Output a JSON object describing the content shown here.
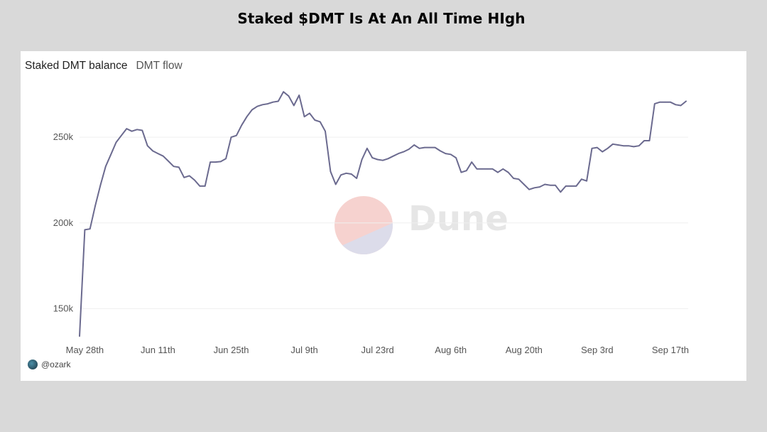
{
  "title": "Staked $DMT Is At An All Time HIgh",
  "tabs": [
    {
      "label": "Staked DMT balance",
      "active": true
    },
    {
      "label": "DMT flow",
      "active": false
    }
  ],
  "watermark": {
    "text": "Dune"
  },
  "credit": {
    "text": "@ozark"
  },
  "colors": {
    "line": "#6b6a8f",
    "grid": "#efefef",
    "axis_text": "#555555",
    "background": "#d9d9d9",
    "card": "#ffffff"
  },
  "chart_data": {
    "type": "line",
    "series": [
      {
        "values": [
          [
            0,
            134000
          ],
          [
            1,
            196000
          ],
          [
            2,
            196500
          ],
          [
            3,
            210000
          ],
          [
            4,
            222000
          ],
          [
            5,
            233000
          ],
          [
            6,
            240000
          ],
          [
            7,
            247000
          ],
          [
            8,
            251000
          ],
          [
            9,
            255000
          ],
          [
            10,
            253500
          ],
          [
            11,
            254500
          ],
          [
            12,
            254000
          ],
          [
            13,
            245000
          ],
          [
            14,
            242000
          ],
          [
            15,
            240500
          ],
          [
            16,
            239000
          ],
          [
            17,
            236000
          ],
          [
            18,
            233000
          ],
          [
            19,
            232500
          ],
          [
            20,
            226500
          ],
          [
            21,
            227500
          ],
          [
            22,
            225000
          ],
          [
            23,
            221500
          ],
          [
            24,
            221500
          ],
          [
            25,
            235500
          ],
          [
            26,
            235500
          ],
          [
            27,
            235800
          ],
          [
            28,
            237500
          ],
          [
            29,
            250000
          ],
          [
            30,
            251000
          ],
          [
            31,
            257000
          ],
          [
            32,
            262000
          ],
          [
            33,
            266000
          ],
          [
            34,
            268000
          ],
          [
            35,
            269000
          ],
          [
            36,
            269500
          ],
          [
            37,
            270500
          ],
          [
            38,
            271000
          ],
          [
            39,
            276500
          ],
          [
            40,
            274000
          ],
          [
            41,
            268500
          ],
          [
            42,
            274500
          ],
          [
            43,
            262000
          ],
          [
            44,
            264000
          ],
          [
            45,
            260000
          ],
          [
            46,
            259000
          ],
          [
            47,
            253500
          ],
          [
            48,
            230000
          ],
          [
            49,
            222500
          ],
          [
            50,
            228000
          ],
          [
            51,
            229000
          ],
          [
            52,
            228500
          ],
          [
            53,
            226000
          ],
          [
            54,
            237000
          ],
          [
            55,
            243500
          ],
          [
            56,
            238000
          ],
          [
            57,
            237000
          ],
          [
            58,
            236500
          ],
          [
            59,
            237500
          ],
          [
            60,
            239000
          ],
          [
            61,
            240500
          ],
          [
            62,
            241500
          ],
          [
            63,
            243000
          ],
          [
            64,
            245500
          ],
          [
            65,
            243500
          ],
          [
            66,
            244000
          ],
          [
            67,
            244000
          ],
          [
            68,
            244000
          ],
          [
            69,
            242000
          ],
          [
            70,
            240500
          ],
          [
            71,
            240000
          ],
          [
            72,
            238000
          ],
          [
            73,
            229500
          ],
          [
            74,
            230500
          ],
          [
            75,
            235500
          ],
          [
            76,
            231500
          ],
          [
            77,
            231500
          ],
          [
            78,
            231500
          ],
          [
            79,
            231500
          ],
          [
            80,
            229500
          ],
          [
            81,
            231500
          ],
          [
            82,
            229500
          ],
          [
            83,
            226000
          ],
          [
            84,
            225500
          ],
          [
            85,
            222500
          ],
          [
            86,
            219500
          ],
          [
            87,
            220500
          ],
          [
            88,
            221000
          ],
          [
            89,
            222500
          ],
          [
            90,
            222000
          ],
          [
            91,
            222000
          ],
          [
            92,
            218000
          ],
          [
            93,
            221500
          ],
          [
            94,
            221500
          ],
          [
            95,
            221500
          ],
          [
            96,
            225500
          ],
          [
            97,
            224500
          ],
          [
            98,
            243500
          ],
          [
            99,
            244000
          ],
          [
            100,
            241500
          ],
          [
            101,
            243500
          ],
          [
            102,
            246000
          ],
          [
            103,
            245500
          ],
          [
            104,
            245000
          ],
          [
            105,
            245000
          ],
          [
            106,
            244500
          ],
          [
            107,
            245000
          ],
          [
            108,
            248000
          ],
          [
            109,
            248000
          ],
          [
            110,
            269500
          ],
          [
            111,
            270500
          ],
          [
            112,
            270500
          ],
          [
            113,
            270500
          ],
          [
            114,
            269000
          ],
          [
            115,
            268500
          ],
          [
            116,
            271000
          ]
        ]
      }
    ],
    "xticks": [
      {
        "x": 1,
        "label": "May 28th"
      },
      {
        "x": 15,
        "label": "Jun 11th"
      },
      {
        "x": 29,
        "label": "Jun 25th"
      },
      {
        "x": 43,
        "label": "Jul 9th"
      },
      {
        "x": 57,
        "label": "Jul 23rd"
      },
      {
        "x": 71,
        "label": "Aug 6th"
      },
      {
        "x": 85,
        "label": "Aug 20th"
      },
      {
        "x": 99,
        "label": "Sep 3rd"
      },
      {
        "x": 113,
        "label": "Sep 17th"
      }
    ],
    "yticks": [
      {
        "y": 150000,
        "label": "150k"
      },
      {
        "y": 200000,
        "label": "200k"
      },
      {
        "y": 250000,
        "label": "250k"
      }
    ],
    "xlim": [
      0,
      116
    ],
    "ylim": [
      134000,
      277000
    ],
    "grid": true,
    "legend": "none"
  }
}
